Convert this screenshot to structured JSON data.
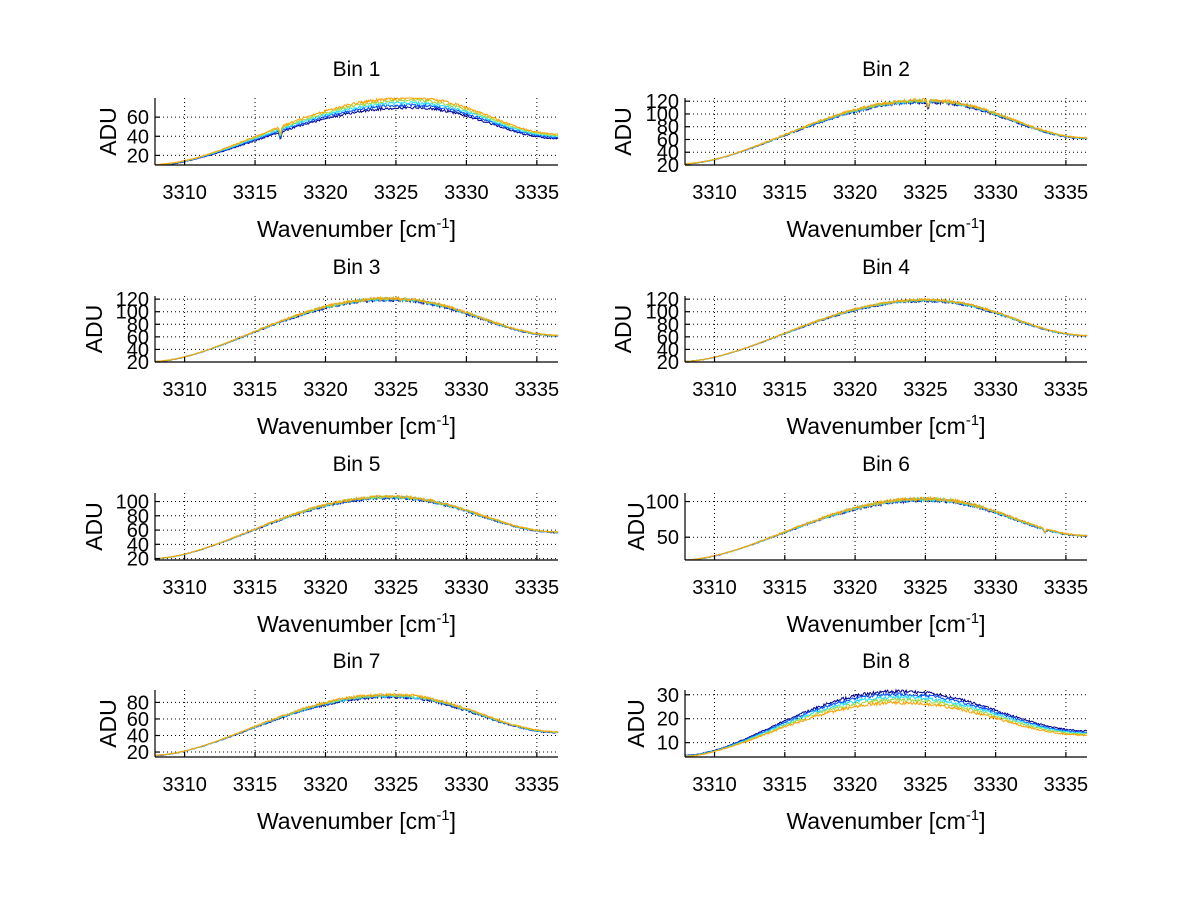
{
  "figure": {
    "layout": "4x2 subplots",
    "colormap": [
      "#00008f",
      "#0050ff",
      "#20e0ff",
      "#a0d840",
      "#ffa000"
    ]
  },
  "chart_data": [
    {
      "type": "line",
      "title": "Bin 1",
      "xlabel": "Wavenumber [cm",
      "xlabel_sup": "-1",
      "xlabel_end": "]",
      "ylabel": "ADU",
      "xlim": [
        3307.9,
        3336.5
      ],
      "ylim": [
        10,
        80
      ],
      "xticks": [
        3310,
        3315,
        3320,
        3325,
        3330,
        3335
      ],
      "yticks": [
        20,
        40,
        60
      ],
      "grid": true,
      "profile": {
        "start": 10,
        "peak": 75,
        "peak_x": 3326,
        "end": 40,
        "noise": 1.5,
        "spread": 2.5,
        "dips": [
          [
            3316.8,
            8
          ]
        ]
      },
      "series_count": 5
    },
    {
      "type": "line",
      "title": "Bin 2",
      "xlabel": "Wavenumber [cm",
      "xlabel_sup": "-1",
      "xlabel_end": "]",
      "ylabel": "ADU",
      "xlim": [
        3307.9,
        3336.5
      ],
      "ylim": [
        20,
        125
      ],
      "xticks": [
        3310,
        3315,
        3320,
        3325,
        3330,
        3335
      ],
      "yticks": [
        20,
        40,
        60,
        80,
        100,
        120
      ],
      "grid": true,
      "profile": {
        "start": 22,
        "peak": 120,
        "peak_x": 3325,
        "end": 62,
        "noise": 2.5,
        "spread": 0.8,
        "dips": [
          [
            3325.2,
            10
          ]
        ]
      },
      "series_count": 5
    },
    {
      "type": "line",
      "title": "Bin 3",
      "xlabel": "Wavenumber [cm",
      "xlabel_sup": "-1",
      "xlabel_end": "]",
      "ylabel": "ADU",
      "xlim": [
        3307.9,
        3336.5
      ],
      "ylim": [
        20,
        125
      ],
      "xticks": [
        3310,
        3315,
        3320,
        3325,
        3330,
        3335
      ],
      "yticks": [
        20,
        40,
        60,
        80,
        100,
        120
      ],
      "grid": true,
      "profile": {
        "start": 21,
        "peak": 120,
        "peak_x": 3324.5,
        "end": 62,
        "noise": 2.5,
        "spread": 0.6,
        "dips": []
      },
      "series_count": 5
    },
    {
      "type": "line",
      "title": "Bin 4",
      "xlabel": "Wavenumber [cm",
      "xlabel_sup": "-1",
      "xlabel_end": "]",
      "ylabel": "ADU",
      "xlim": [
        3307.9,
        3336.5
      ],
      "ylim": [
        20,
        125
      ],
      "xticks": [
        3310,
        3315,
        3320,
        3325,
        3330,
        3335
      ],
      "yticks": [
        20,
        40,
        60,
        80,
        100,
        120
      ],
      "grid": true,
      "profile": {
        "start": 21,
        "peak": 118,
        "peak_x": 3325,
        "end": 62,
        "noise": 2.0,
        "spread": 0.5,
        "dips": []
      },
      "series_count": 5
    },
    {
      "type": "line",
      "title": "Bin 5",
      "xlabel": "Wavenumber [cm",
      "xlabel_sup": "-1",
      "xlabel_end": "]",
      "ylabel": "ADU",
      "xlim": [
        3307.9,
        3336.5
      ],
      "ylim": [
        18,
        112
      ],
      "xticks": [
        3310,
        3315,
        3320,
        3325,
        3330,
        3335
      ],
      "yticks": [
        20,
        40,
        60,
        80,
        100
      ],
      "grid": true,
      "profile": {
        "start": 20,
        "peak": 106,
        "peak_x": 3324.5,
        "end": 57,
        "noise": 2.0,
        "spread": 0.5,
        "dips": []
      },
      "series_count": 5
    },
    {
      "type": "line",
      "title": "Bin 6",
      "xlabel": "Wavenumber [cm",
      "xlabel_sup": "-1",
      "xlabel_end": "]",
      "ylabel": "ADU",
      "xlim": [
        3307.9,
        3336.5
      ],
      "ylim": [
        18,
        112
      ],
      "xticks": [
        3310,
        3315,
        3320,
        3325,
        3330,
        3335
      ],
      "yticks": [
        50,
        100
      ],
      "grid": true,
      "profile": {
        "start": 18,
        "peak": 103,
        "peak_x": 3325,
        "end": 52,
        "noise": 2.5,
        "spread": 0.5,
        "dips": [
          [
            3333.5,
            5
          ]
        ]
      },
      "series_count": 5
    },
    {
      "type": "line",
      "title": "Bin 7",
      "xlabel": "Wavenumber [cm",
      "xlabel_sup": "-1",
      "xlabel_end": "]",
      "ylabel": "ADU",
      "xlim": [
        3307.9,
        3336.5
      ],
      "ylim": [
        14,
        95
      ],
      "xticks": [
        3310,
        3315,
        3320,
        3325,
        3330,
        3335
      ],
      "yticks": [
        20,
        40,
        60,
        80
      ],
      "grid": true,
      "profile": {
        "start": 16,
        "peak": 88,
        "peak_x": 3324.5,
        "end": 44,
        "noise": 1.8,
        "spread": 0.7,
        "dips": []
      },
      "series_count": 5
    },
    {
      "type": "line",
      "title": "Bin 8",
      "xlabel": "Wavenumber [cm",
      "xlabel_sup": "-1",
      "xlabel_end": "]",
      "ylabel": "ADU",
      "xlim": [
        3307.9,
        3336.5
      ],
      "ylim": [
        4,
        32
      ],
      "xticks": [
        3310,
        3315,
        3320,
        3325,
        3330,
        3335
      ],
      "yticks": [
        10,
        20,
        30
      ],
      "grid": true,
      "profile": {
        "start": 4.5,
        "peak": 29,
        "peak_x": 3323,
        "end": 14,
        "noise": 0.7,
        "spread": 1.2,
        "dips": []
      },
      "series_count": 5
    }
  ]
}
